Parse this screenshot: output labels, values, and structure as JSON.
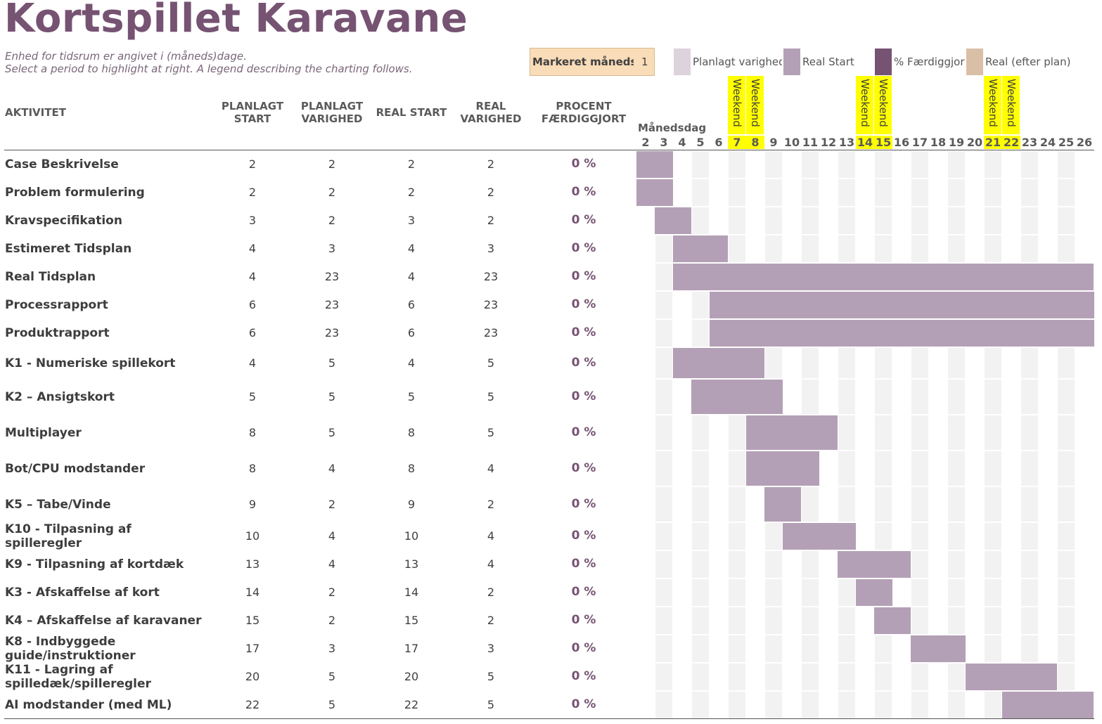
{
  "title": "Kortspillet Karavane",
  "subtitle1": "Enhed for tidsrum er angivet i (måneds)dage.",
  "subtitle2": "Select a period to highlight at right.  A legend describing the charting follows.",
  "highlight": {
    "label": "Markeret månedsdag",
    "value": "1"
  },
  "legend": [
    {
      "label": "Planlagt varighed",
      "color": "#dcd3dc"
    },
    {
      "label": "Real Start",
      "color": "#b4a0b6"
    },
    {
      "label": "% Færdiggjort",
      "color": "#765372"
    },
    {
      "label": "Real (efter plan)",
      "color": "#d9bfa6"
    }
  ],
  "columns": {
    "activity": "AKTIVITET",
    "plan_start": [
      "PLANLAGT",
      "START"
    ],
    "plan_dur": [
      "PLANLAGT",
      "VARIGHED"
    ],
    "real_start": "REAL START",
    "real_dur": [
      "REAL",
      "VARIGHED"
    ],
    "percent": [
      "PROCENT",
      "FÆRDIGGJORT"
    ]
  },
  "timeline": {
    "caption": "Månedsdag",
    "days": [
      2,
      3,
      4,
      5,
      6,
      7,
      8,
      9,
      10,
      11,
      12,
      13,
      14,
      15,
      16,
      17,
      18,
      19,
      20,
      21,
      22,
      23,
      24,
      25,
      26
    ],
    "weekend_days": [
      7,
      8,
      14,
      15,
      21,
      22
    ],
    "weekend_label": "Weekend"
  },
  "colors": {
    "accent": "#765372",
    "bar": "#b4a0b6",
    "weekend": "#ffff00"
  },
  "activities": [
    {
      "name": "Case Beskrivelse",
      "plan_start": "2",
      "plan_dur": "2",
      "real_start": "2",
      "real_dur": "2",
      "pct": "0 %"
    },
    {
      "name": "Problem formulering",
      "plan_start": "2",
      "plan_dur": "2",
      "real_start": "2",
      "real_dur": "2",
      "pct": "0 %"
    },
    {
      "name": "Kravspecifikation",
      "plan_start": "3",
      "plan_dur": "2",
      "real_start": "3",
      "real_dur": "2",
      "pct": "0 %"
    },
    {
      "name": "Estimeret Tidsplan",
      "plan_start": "4",
      "plan_dur": "3",
      "real_start": "4",
      "real_dur": "3",
      "pct": "0 %"
    },
    {
      "name": "Real Tidsplan",
      "plan_start": "4",
      "plan_dur": "23",
      "real_start": "4",
      "real_dur": "23",
      "pct": "0 %"
    },
    {
      "name": "Processrapport",
      "plan_start": "6",
      "plan_dur": "23",
      "real_start": "6",
      "real_dur": "23",
      "pct": "0 %"
    },
    {
      "name": "Produktrapport",
      "plan_start": "6",
      "plan_dur": "23",
      "real_start": "6",
      "real_dur": "23",
      "pct": "0 %"
    },
    {
      "name": "K1 - Numeriske spillekort",
      "plan_start": "4",
      "plan_dur": "5",
      "real_start": "4",
      "real_dur": "5",
      "pct": "0 %"
    },
    {
      "name": "K2 – Ansigtskort",
      "plan_start": "5",
      "plan_dur": "5",
      "real_start": "5",
      "real_dur": "5",
      "pct": "0 %"
    },
    {
      "name": "Multiplayer",
      "plan_start": "8",
      "plan_dur": "5",
      "real_start": "8",
      "real_dur": "5",
      "pct": "0 %"
    },
    {
      "name": "Bot/CPU modstander",
      "plan_start": "8",
      "plan_dur": "4",
      "real_start": "8",
      "real_dur": "4",
      "pct": "0 %"
    },
    {
      "name": "K5 – Tabe/Vinde",
      "plan_start": "9",
      "plan_dur": "2",
      "real_start": "9",
      "real_dur": "2",
      "pct": "0 %"
    },
    {
      "name": "K10 - Tilpasning af spilleregler",
      "plan_start": "10",
      "plan_dur": "4",
      "real_start": "10",
      "real_dur": "4",
      "pct": "0 %"
    },
    {
      "name": "K9 - Tilpasning af kortdæk",
      "plan_start": "13",
      "plan_dur": "4",
      "real_start": "13",
      "real_dur": "4",
      "pct": "0 %"
    },
    {
      "name": "K3 - Afskaffelse af kort",
      "plan_start": "14",
      "plan_dur": "2",
      "real_start": "14",
      "real_dur": "2",
      "pct": "0 %"
    },
    {
      "name": "K4 – Afskaffelse af karavaner",
      "plan_start": "15",
      "plan_dur": "2",
      "real_start": "15",
      "real_dur": "2",
      "pct": "0 %"
    },
    {
      "name": "K8 - Indbyggede guide/instruktioner",
      "plan_start": "17",
      "plan_dur": "3",
      "real_start": "17",
      "real_dur": "3",
      "pct": "0 %"
    },
    {
      "name": "K11 - Lagring af spilledæk/spilleregler",
      "plan_start": "20",
      "plan_dur": "5",
      "real_start": "20",
      "real_dur": "5",
      "pct": "0 %"
    },
    {
      "name": "AI modstander (med ML)",
      "plan_start": "22",
      "plan_dur": "5",
      "real_start": "22",
      "real_dur": "5",
      "pct": "0 %"
    }
  ]
}
